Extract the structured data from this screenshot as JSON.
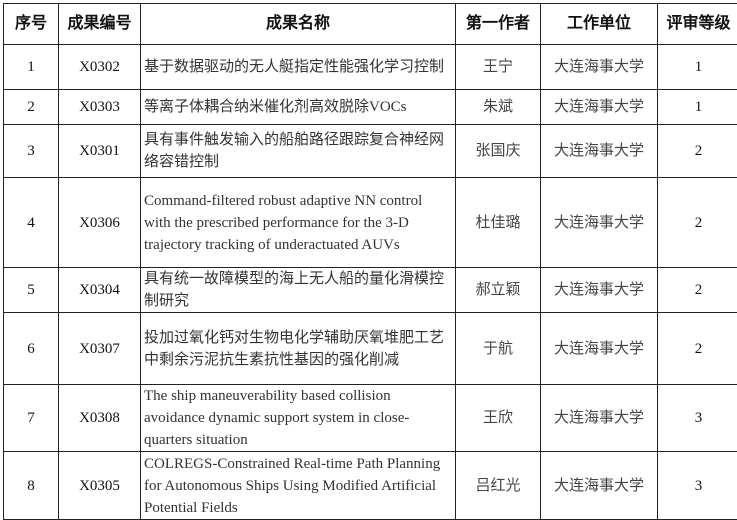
{
  "headers": [
    "序号",
    "成果编号",
    "成果名称",
    "第一作者",
    "工作单位",
    "评审等级"
  ],
  "rows": [
    {
      "no": "1",
      "code": "X0302",
      "title": "基于数据驱动的无人艇指定性能强化学习控制",
      "author": "王宁",
      "unit": "大连海事大学",
      "grade": "1"
    },
    {
      "no": "2",
      "code": "X0303",
      "title": "等离子体耦合纳米催化剂高效脱除VOCs",
      "author": "朱斌",
      "unit": "大连海事大学",
      "grade": "1"
    },
    {
      "no": "3",
      "code": "X0301",
      "title": "具有事件触发输入的船舶路径跟踪复合神经网络容错控制",
      "author": "张国庆",
      "unit": "大连海事大学",
      "grade": "2"
    },
    {
      "no": "4",
      "code": "X0306",
      "title": "Command-filtered robust adaptive NN control with the prescribed performance for the 3-D trajectory tracking of underactuated AUVs",
      "author": "杜佳璐",
      "unit": "大连海事大学",
      "grade": "2"
    },
    {
      "no": "5",
      "code": "X0304",
      "title": "具有统一故障模型的海上无人船的量化滑模控制研究",
      "author": "郝立颖",
      "unit": "大连海事大学",
      "grade": "2"
    },
    {
      "no": "6",
      "code": "X0307",
      "title": "投加过氧化钙对生物电化学辅助厌氧堆肥工艺中剩余污泥抗生素抗性基因的强化削减",
      "author": "于航",
      "unit": "大连海事大学",
      "grade": "2"
    },
    {
      "no": "7",
      "code": "X0308",
      "title": "The ship maneuverability based collision avoidance dynamic support system in close-quarters situation",
      "author": "王欣",
      "unit": "大连海事大学",
      "grade": "3"
    },
    {
      "no": "8",
      "code": "X0305",
      "title": "COLREGS-Constrained Real-time Path Planning for Autonomous Ships Using Modified Artificial Potential Fields",
      "author": "吕红光",
      "unit": "大连海事大学",
      "grade": "3"
    }
  ]
}
